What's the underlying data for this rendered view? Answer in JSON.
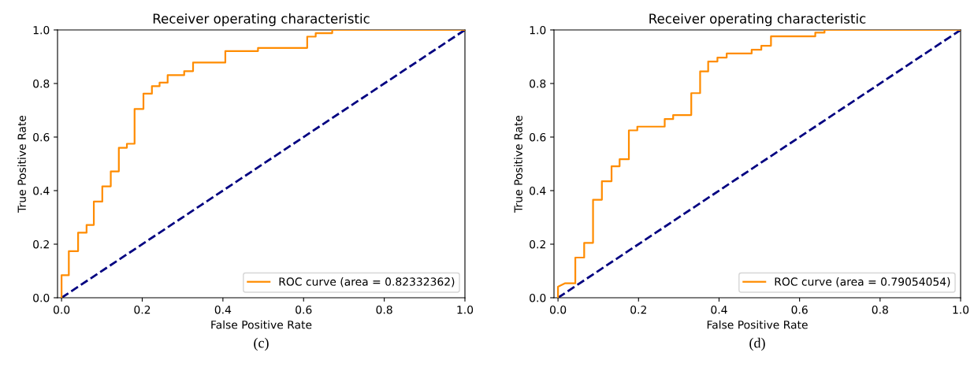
{
  "chart_data": [
    {
      "type": "line",
      "title": "Receiver operating characteristic",
      "xlabel": "False Positive Rate",
      "ylabel": "True Positive Rate",
      "xlim": [
        -0.01,
        1.0
      ],
      "ylim": [
        0,
        1.0
      ],
      "xticks": [
        {
          "value": 0,
          "label": "0.0"
        },
        {
          "value": 0.2,
          "label": "0.2"
        },
        {
          "value": 0.4,
          "label": "0.4"
        },
        {
          "value": 0.6,
          "label": "0.6"
        },
        {
          "value": 0.8,
          "label": "0.8"
        },
        {
          "value": 1,
          "label": "1.0"
        }
      ],
      "yticks": [
        {
          "value": 0,
          "label": "0.0"
        },
        {
          "value": 0.2,
          "label": "0.2"
        },
        {
          "value": 0.4,
          "label": "0.4"
        },
        {
          "value": 0.6,
          "label": "0.6"
        },
        {
          "value": 0.8,
          "label": "0.8"
        },
        {
          "value": 1,
          "label": "1.0"
        }
      ],
      "grid": false,
      "legend": "lower right",
      "annotations": [
        "(c)"
      ],
      "series": [
        {
          "name": "ROC curve (area = 0.82332362)",
          "type": "step",
          "color": "#ff8c00",
          "line_style": "solid",
          "x": [
            0,
            0,
            0.018,
            0.041,
            0.062,
            0.08,
            0.101,
            0.122,
            0.142,
            0.162,
            0.181,
            0.203,
            0.224,
            0.243,
            0.263,
            0.304,
            0.326,
            0.406,
            0.487,
            0.609,
            0.63,
            0.671,
            1.0
          ],
          "values": [
            0,
            0.084,
            0.174,
            0.243,
            0.272,
            0.359,
            0.416,
            0.472,
            0.56,
            0.575,
            0.705,
            0.762,
            0.79,
            0.803,
            0.831,
            0.846,
            0.878,
            0.921,
            0.933,
            0.975,
            0.988,
            1.0,
            1.0
          ]
        },
        {
          "type": "line",
          "color": "#000080",
          "line_style": "dashed",
          "x": [
            0,
            1
          ],
          "values": [
            0,
            1
          ]
        }
      ]
    },
    {
      "type": "line",
      "title": "Receiver operating characteristic",
      "xlabel": "False Positive Rate",
      "ylabel": "True Positive Rate",
      "xlim": [
        -0.01,
        1.0
      ],
      "ylim": [
        0,
        1.0
      ],
      "xticks": [
        {
          "value": 0,
          "label": "0.0"
        },
        {
          "value": 0.2,
          "label": "0.2"
        },
        {
          "value": 0.4,
          "label": "0.4"
        },
        {
          "value": 0.6,
          "label": "0.6"
        },
        {
          "value": 0.8,
          "label": "0.8"
        },
        {
          "value": 1,
          "label": "1.0"
        }
      ],
      "yticks": [
        {
          "value": 0,
          "label": "0.0"
        },
        {
          "value": 0.2,
          "label": "0.2"
        },
        {
          "value": 0.4,
          "label": "0.4"
        },
        {
          "value": 0.6,
          "label": "0.6"
        },
        {
          "value": 0.8,
          "label": "0.8"
        },
        {
          "value": 1,
          "label": "1.0"
        }
      ],
      "grid": false,
      "legend": "lower right",
      "annotations": [
        "(d)"
      ],
      "series": [
        {
          "name": "ROC curve (area = 0.79054054)",
          "type": "line",
          "color": "#ff8c00",
          "line_style": "solid",
          "x": [
            0,
            0,
            0.017,
            0.043,
            0.043,
            0.065,
            0.065,
            0.087,
            0.087,
            0.109,
            0.109,
            0.133,
            0.133,
            0.153,
            0.153,
            0.176,
            0.176,
            0.197,
            0.197,
            0.265,
            0.265,
            0.286,
            0.286,
            0.331,
            0.331,
            0.353,
            0.353,
            0.373,
            0.373,
            0.396,
            0.396,
            0.419,
            0.419,
            0.481,
            0.481,
            0.505,
            0.505,
            0.529,
            0.529,
            0.639,
            0.639,
            0.662,
            0.662,
            1.0
          ],
          "values": [
            0,
            0.041,
            0.054,
            0.054,
            0.15,
            0.15,
            0.205,
            0.205,
            0.366,
            0.366,
            0.435,
            0.435,
            0.491,
            0.491,
            0.517,
            0.517,
            0.625,
            0.625,
            0.639,
            0.639,
            0.667,
            0.667,
            0.682,
            0.682,
            0.764,
            0.764,
            0.845,
            0.845,
            0.882,
            0.882,
            0.897,
            0.897,
            0.912,
            0.912,
            0.926,
            0.926,
            0.941,
            0.941,
            0.976,
            0.976,
            0.99,
            0.99,
            1.0,
            1.0
          ]
        },
        {
          "type": "line",
          "color": "#000080",
          "line_style": "dashed",
          "x": [
            0,
            1
          ],
          "values": [
            0,
            1
          ]
        }
      ]
    }
  ]
}
